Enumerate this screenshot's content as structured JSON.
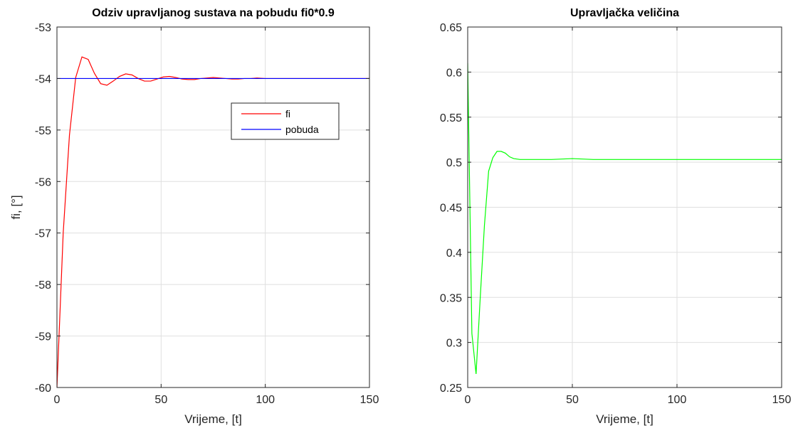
{
  "chart_data": [
    {
      "type": "line",
      "title": "Odziv upravljanog sustava na pobudu fi0*0.9",
      "xlabel": "Vrijeme, [t]",
      "ylabel": "fi, [°]",
      "xlim": [
        0,
        150
      ],
      "ylim": [
        -60,
        -53
      ],
      "xticks": [
        0,
        50,
        100,
        150
      ],
      "xtick_labels": [
        "0",
        "50",
        "100",
        "150"
      ],
      "yticks": [
        -60,
        -59,
        -58,
        -57,
        -56,
        -55,
        -54,
        -53
      ],
      "ytick_labels": [
        "-60",
        "-59",
        "-58",
        "-57",
        "-56",
        "-55",
        "-54",
        "-53"
      ],
      "grid": true,
      "legend": "top-right",
      "series": [
        {
          "name": "fi",
          "color": "#ff0000",
          "x": [
            0,
            3,
            6,
            9,
            12,
            15,
            18,
            21,
            24,
            27,
            30,
            33,
            36,
            39,
            42,
            45,
            48,
            51,
            54,
            57,
            60,
            63,
            66,
            69,
            72,
            75,
            78,
            81,
            84,
            87,
            90,
            93,
            96,
            100,
            110,
            120,
            130,
            140,
            150
          ],
          "y": [
            -60,
            -57.0,
            -55.1,
            -53.98,
            -53.58,
            -53.63,
            -53.9,
            -54.1,
            -54.13,
            -54.05,
            -53.96,
            -53.91,
            -53.93,
            -54.0,
            -54.05,
            -54.05,
            -54.01,
            -53.97,
            -53.96,
            -53.98,
            -54.01,
            -54.02,
            -54.02,
            -54.0,
            -53.99,
            -53.98,
            -53.99,
            -54.0,
            -54.01,
            -54.01,
            -54.0,
            -54.0,
            -53.99,
            -54.0,
            -54.0,
            -54.0,
            -54.0,
            -54.0,
            -54.0
          ]
        },
        {
          "name": "pobuda",
          "color": "#0000ff",
          "x": [
            0,
            150
          ],
          "y": [
            -54,
            -54
          ]
        }
      ]
    },
    {
      "type": "line",
      "title": "Upravljačka veličina",
      "xlabel": "Vrijeme, [t]",
      "ylabel": "",
      "xlim": [
        0,
        150
      ],
      "ylim": [
        0.25,
        0.65
      ],
      "xticks": [
        0,
        50,
        100,
        150
      ],
      "xtick_labels": [
        "0",
        "50",
        "100",
        "150"
      ],
      "yticks": [
        0.25,
        0.3,
        0.35,
        0.4,
        0.45,
        0.5,
        0.55,
        0.6,
        0.65
      ],
      "ytick_labels": [
        "0.25",
        "0.3",
        "0.35",
        "0.4",
        "0.45",
        "0.5",
        "0.55",
        "0.6",
        "0.65"
      ],
      "grid": true,
      "series": [
        {
          "color": "#00ff00",
          "x": [
            0,
            2,
            4,
            6,
            8,
            10,
            12,
            14,
            16,
            18,
            20,
            22,
            25,
            30,
            40,
            50,
            60,
            80,
            100,
            120,
            150
          ],
          "y": [
            0.61,
            0.31,
            0.265,
            0.35,
            0.43,
            0.49,
            0.505,
            0.512,
            0.512,
            0.51,
            0.506,
            0.504,
            0.503,
            0.503,
            0.503,
            0.504,
            0.503,
            0.503,
            0.503,
            0.503,
            0.503
          ]
        }
      ]
    }
  ]
}
